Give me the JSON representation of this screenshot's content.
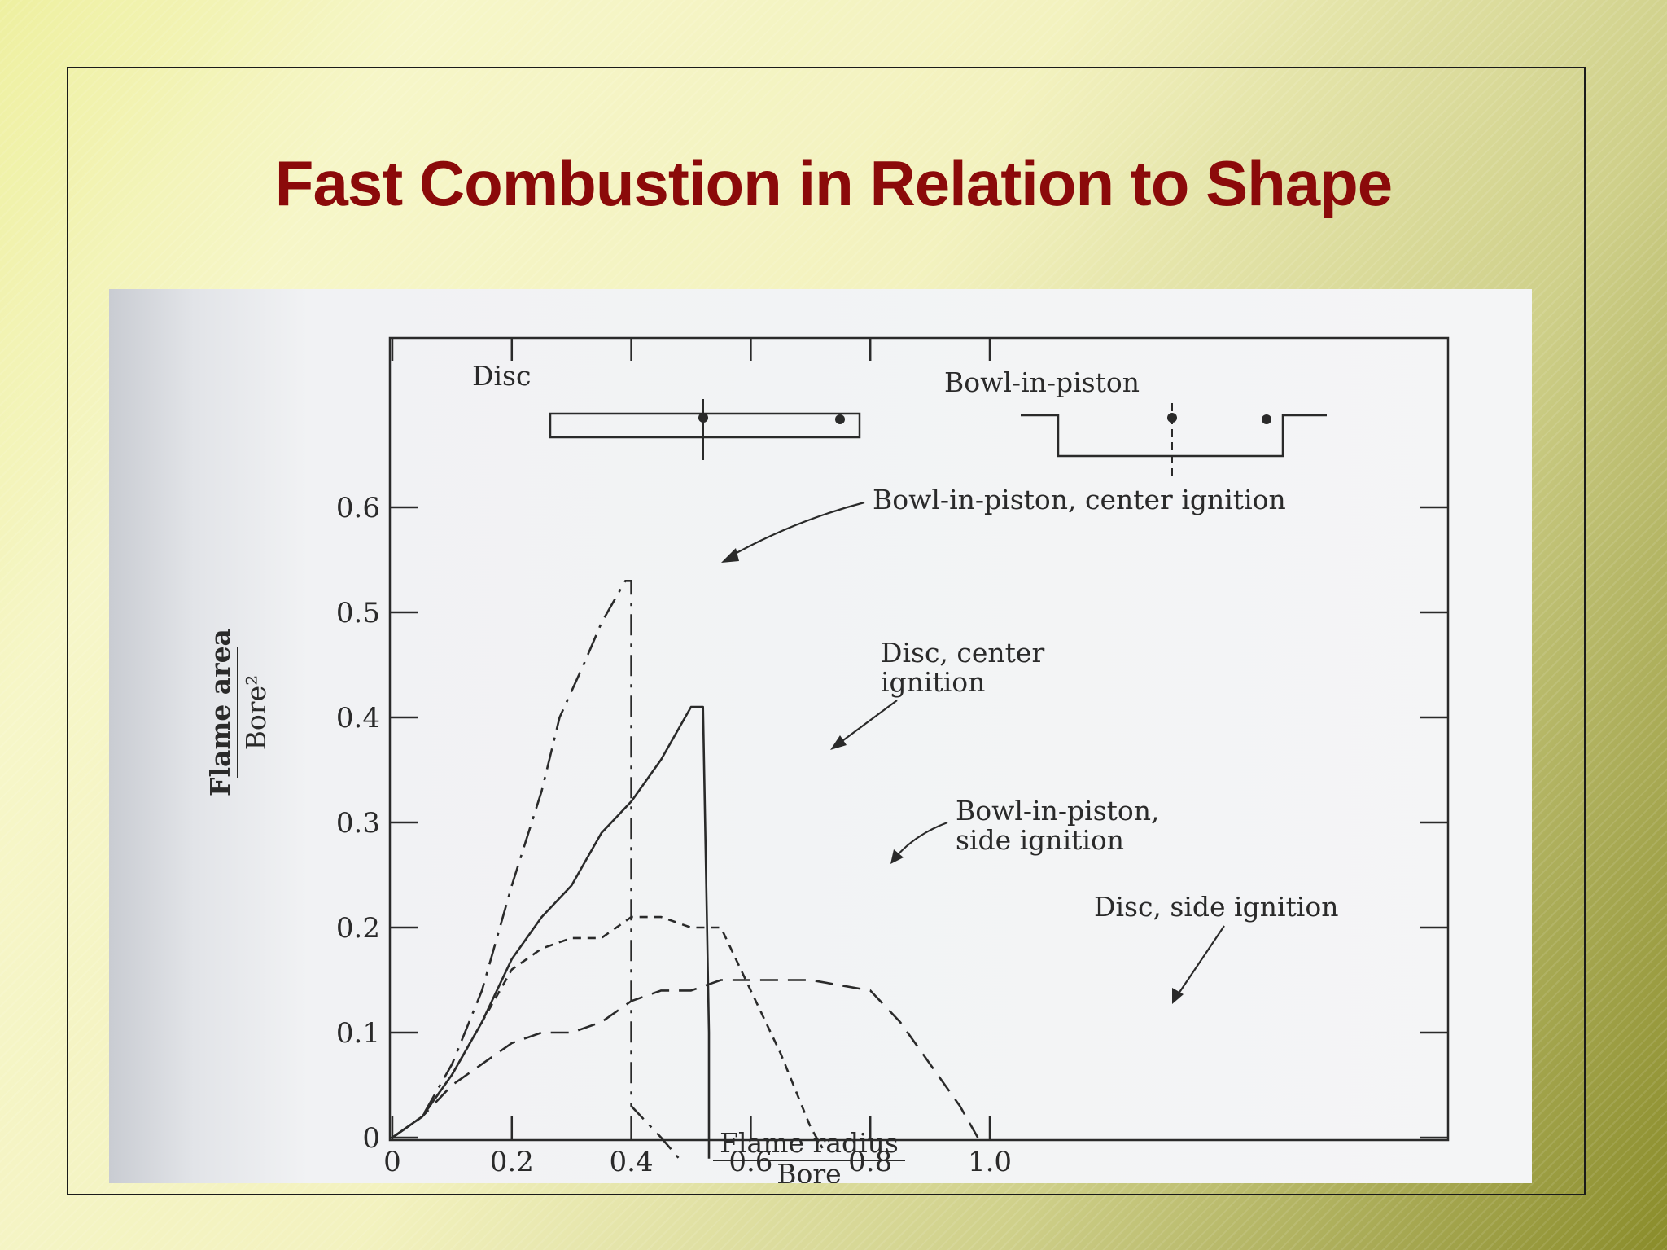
{
  "slide": {
    "title": "Fast Combustion in Relation to Shape"
  },
  "colors": {
    "title": "#8b0a0a",
    "frame": "#1a1a1a",
    "ink": "#2a2a2a"
  },
  "chart_data": {
    "type": "line",
    "xlabel_num": "Flame radius",
    "xlabel_den": "Bore",
    "ylabel_num": "Flame area",
    "ylabel_den": "Bore²",
    "xlim": [
      0,
      1.2
    ],
    "ylim": [
      0,
      0.65
    ],
    "xticks": [
      0,
      0.2,
      0.4,
      0.6,
      0.8,
      1.0
    ],
    "xtick_labels": [
      "0",
      "0.2",
      "0.4",
      "0.6",
      "0.8",
      "1.0"
    ],
    "yticks": [
      0,
      0.1,
      0.2,
      0.3,
      0.4,
      0.5,
      0.6
    ],
    "ytick_labels": [
      "0",
      "0.1",
      "0.2",
      "0.3",
      "0.4",
      "0.5",
      "0.6"
    ],
    "inset_labels": {
      "disc": "Disc",
      "bowl": "Bowl-in-piston"
    },
    "series": [
      {
        "name": "Bowl-in-piston, center ignition",
        "style": "dashdot",
        "x": [
          0,
          0.05,
          0.1,
          0.15,
          0.2,
          0.25,
          0.28,
          0.32,
          0.35,
          0.39,
          0.4,
          0.4,
          0.45,
          0.48
        ],
        "y": [
          0,
          0.02,
          0.07,
          0.14,
          0.24,
          0.33,
          0.4,
          0.45,
          0.49,
          0.53,
          0.53,
          0.03,
          0.0,
          -0.02
        ]
      },
      {
        "name": "Disc, center ignition",
        "style": "solid",
        "x": [
          0,
          0.05,
          0.1,
          0.15,
          0.2,
          0.25,
          0.3,
          0.35,
          0.4,
          0.45,
          0.5,
          0.52,
          0.53,
          0.53
        ],
        "y": [
          0,
          0.02,
          0.06,
          0.11,
          0.17,
          0.21,
          0.24,
          0.29,
          0.32,
          0.36,
          0.41,
          0.41,
          0.1,
          -0.02
        ]
      },
      {
        "name": "Bowl-in-piston, side ignition",
        "style": "dashed",
        "x": [
          0,
          0.05,
          0.1,
          0.15,
          0.2,
          0.25,
          0.3,
          0.35,
          0.4,
          0.45,
          0.5,
          0.55,
          0.6,
          0.65,
          0.7,
          0.72
        ],
        "y": [
          0,
          0.02,
          0.06,
          0.11,
          0.16,
          0.18,
          0.19,
          0.19,
          0.21,
          0.21,
          0.2,
          0.2,
          0.14,
          0.08,
          0.01,
          -0.01
        ]
      },
      {
        "name": "Disc, side ignition",
        "style": "longdash",
        "x": [
          0,
          0.05,
          0.1,
          0.15,
          0.2,
          0.25,
          0.3,
          0.35,
          0.4,
          0.45,
          0.5,
          0.55,
          0.6,
          0.7,
          0.8,
          0.85,
          0.9,
          0.95,
          0.98
        ],
        "y": [
          0,
          0.02,
          0.05,
          0.07,
          0.09,
          0.1,
          0.1,
          0.11,
          0.13,
          0.14,
          0.14,
          0.15,
          0.15,
          0.15,
          0.14,
          0.11,
          0.07,
          0.03,
          0.0
        ]
      }
    ],
    "annotations": [
      {
        "lines": [
          "Bowl-in-piston, center ignition"
        ],
        "series": 0
      },
      {
        "lines": [
          "Disc, center",
          "ignition"
        ],
        "series": 1
      },
      {
        "lines": [
          "Bowl-in-piston,",
          "side ignition"
        ],
        "series": 2
      },
      {
        "lines": [
          "Disc, side ignition"
        ],
        "series": 3
      }
    ]
  }
}
